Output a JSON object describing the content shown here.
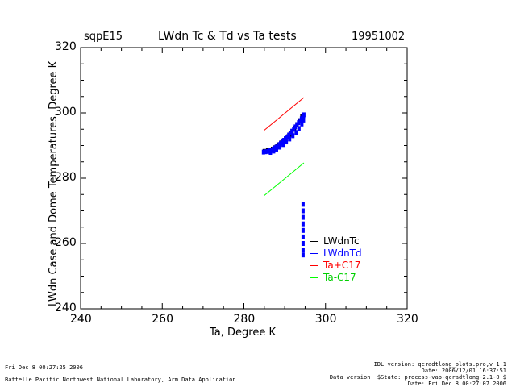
{
  "header": {
    "site": "sqpE15",
    "title": "LWdn Tc & Td vs Ta tests",
    "date": "19951002"
  },
  "chart_data": {
    "type": "scatter",
    "title": "LWdn Tc & Td vs Ta tests",
    "xlabel": "Ta, Degree K",
    "ylabel": "LWdn Case and Dome Temperatures, Degree K",
    "xlim": [
      240,
      320
    ],
    "ylim": [
      240,
      320
    ],
    "xticks": [
      240,
      260,
      280,
      300,
      320
    ],
    "yticks": [
      240,
      260,
      280,
      300,
      320
    ],
    "grid": false,
    "legend_position": "bottom-right",
    "series": [
      {
        "name": "LWdnTc",
        "kind": "scatter",
        "color": "#000000",
        "x": [
          285.0,
          285.8,
          286.5,
          287.0,
          287.6,
          288.1,
          288.6,
          289.1,
          289.6,
          290.2,
          290.8,
          291.3,
          291.8,
          292.4,
          293.0,
          293.6,
          294.2
        ],
        "y": [
          288.2,
          288.4,
          288.6,
          288.9,
          289.3,
          289.7,
          290.2,
          290.8,
          291.4,
          292.0,
          292.7,
          293.4,
          294.3,
          295.3,
          296.4,
          297.6,
          298.8
        ]
      },
      {
        "name": "LWdnTd",
        "kind": "scatter",
        "color": "#0000ff",
        "x": [
          284.8,
          285.3,
          285.9,
          286.3,
          286.8,
          287.2,
          287.5,
          287.9,
          288.3,
          288.7,
          289.0,
          289.4,
          289.8,
          290.2,
          290.6,
          291.0,
          291.4,
          291.8,
          292.2,
          292.6,
          293.0,
          293.4,
          293.8,
          294.1,
          294.4,
          294.6,
          294.7,
          286.5,
          287.3,
          288.0,
          288.8,
          289.6,
          290.4,
          291.2,
          292.0,
          292.8,
          293.5,
          294.2,
          294.6,
          294.5,
          294.5,
          294.5,
          294.5,
          294.5,
          294.5,
          294.5,
          294.5,
          294.5
        ],
        "y": [
          288.0,
          288.1,
          288.2,
          288.4,
          288.6,
          288.9,
          289.2,
          289.5,
          289.9,
          290.3,
          290.7,
          291.1,
          291.6,
          292.1,
          292.6,
          293.2,
          293.8,
          294.4,
          295.0,
          295.7,
          296.4,
          297.0,
          297.6,
          298.2,
          298.7,
          299.1,
          299.4,
          287.9,
          288.3,
          288.9,
          289.5,
          290.3,
          291.1,
          292.0,
          293.0,
          294.0,
          295.2,
          296.6,
          297.8,
          272.0,
          270.0,
          268.0,
          266.0,
          264.0,
          262.0,
          260.0,
          258.0,
          256.5
        ]
      },
      {
        "name": "Ta+C17",
        "kind": "line",
        "color": "#ff0000",
        "x": [
          285.0,
          294.7
        ],
        "y": [
          294.7,
          304.7
        ]
      },
      {
        "name": "Ta-C17",
        "kind": "line",
        "color": "#00ff00",
        "x": [
          285.0,
          294.7
        ],
        "y": [
          274.7,
          284.7
        ]
      }
    ]
  },
  "footer": {
    "left_date": "Fri Dec  8 00:27:25 2006",
    "left_org": "Battelle Pacific Northwest National Laboratory, Arm Data Application",
    "right_lines": [
      "IDL version: qcradtlong_plots.pro,v 1.1",
      "Date: 2006/12/01 16:37:51",
      "Data version: $State: process-vap-qcradtlong-2.1-0 $",
      "Date: Fri Dec  8 00:27:07 2006"
    ]
  }
}
